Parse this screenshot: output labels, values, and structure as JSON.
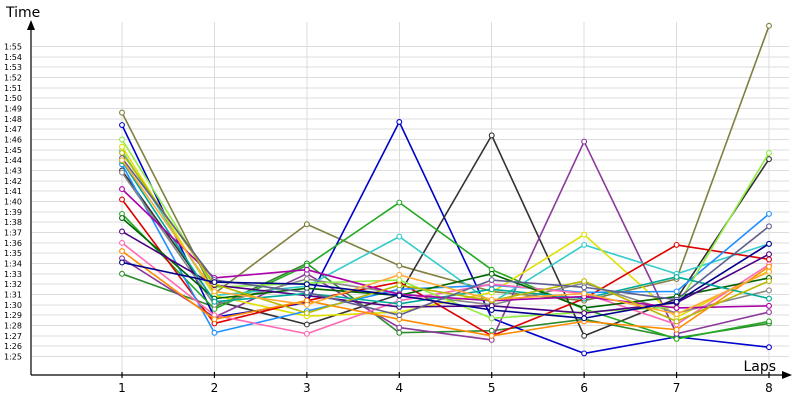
{
  "chart_data": {
    "type": "line",
    "title": "",
    "xlabel": "Laps",
    "ylabel": "Time",
    "x": [
      1,
      2,
      3,
      4,
      5,
      6,
      7,
      8
    ],
    "x_tick_labels": [
      "1",
      "2",
      "3",
      "4",
      "5",
      "6",
      "7",
      "8"
    ],
    "y_unit": "seconds (displayed m:ss)",
    "y_tick_labels": [
      "1:25",
      "1:26",
      "1:27",
      "1:28",
      "1:29",
      "1:30",
      "1:31",
      "1:32",
      "1:33",
      "1:34",
      "1:35",
      "1:36",
      "1:37",
      "1:38",
      "1:39",
      "1:40",
      "1:41",
      "1:42",
      "1:43",
      "1:44",
      "1:45",
      "1:46",
      "1:47",
      "1:48",
      "1:49",
      "1:50",
      "1:51",
      "1:52",
      "1:53",
      "1:54",
      "1:55"
    ],
    "ylim": [
      84,
      116
    ],
    "grid": true,
    "legend": "none",
    "series": [
      {
        "color": "#2e8b2e",
        "values": [
          93.0,
          89.8,
          94.0,
          87.3,
          87.5,
          88.6,
          86.8,
          88.2
        ]
      },
      {
        "color": "#808040",
        "values": [
          108.6,
          91.1,
          97.8,
          93.8,
          91.3,
          90.4,
          92.5,
          117.0
        ]
      },
      {
        "color": "#0000cc",
        "values": [
          107.4,
          88.8,
          90.2,
          107.7,
          88.7,
          85.3,
          86.9,
          85.9
        ]
      },
      {
        "color": "#333333",
        "values": [
          103.0,
          90.4,
          88.1,
          91.0,
          106.4,
          87.0,
          90.6,
          104.1
        ]
      },
      {
        "color": "#8b3a9c",
        "values": [
          94.5,
          88.8,
          93.0,
          87.8,
          86.6,
          105.8,
          87.2,
          89.3
        ]
      },
      {
        "color": "#22aa22",
        "values": [
          98.8,
          89.6,
          93.8,
          99.9,
          93.4,
          89.6,
          86.7,
          88.4
        ]
      },
      {
        "color": "#33cccc",
        "values": [
          104.9,
          90.9,
          91.8,
          96.6,
          90.2,
          95.8,
          93.0,
          95.9
        ]
      },
      {
        "color": "#e0e000",
        "values": [
          105.3,
          90.9,
          88.9,
          89.3,
          91.2,
          96.8,
          88.8,
          93.3
        ]
      },
      {
        "color": "#dd0000",
        "values": [
          100.2,
          88.2,
          90.4,
          92.2,
          87.0,
          90.6,
          95.8,
          94.4
        ]
      },
      {
        "color": "#1e90ff",
        "values": [
          103.6,
          87.3,
          89.4,
          91.5,
          91.9,
          91.2,
          91.3,
          98.8
        ]
      },
      {
        "color": "#888888",
        "values": [
          102.8,
          90.0,
          92.5,
          91.1,
          90.0,
          92.1,
          89.2,
          91.4
        ]
      },
      {
        "color": "#ff69b4",
        "values": [
          96.0,
          89.0,
          87.2,
          90.4,
          92.0,
          91.1,
          88.1,
          93.9
        ]
      },
      {
        "color": "#006400",
        "values": [
          98.4,
          90.6,
          91.6,
          90.9,
          93.0,
          89.7,
          90.8,
          92.6
        ]
      },
      {
        "color": "#90ee40",
        "values": [
          106.0,
          91.7,
          92.1,
          92.4,
          88.7,
          89.3,
          89.8,
          104.7
        ]
      },
      {
        "color": "#4b0082",
        "values": [
          97.1,
          91.9,
          90.9,
          89.8,
          89.9,
          89.2,
          90.2,
          94.9
        ]
      },
      {
        "color": "#ff8c00",
        "values": [
          95.2,
          88.6,
          90.4,
          88.6,
          87.0,
          88.4,
          87.6,
          93.7
        ]
      },
      {
        "color": "#00aa99",
        "values": [
          103.9,
          90.3,
          91.1,
          90.1,
          91.5,
          90.6,
          92.7,
          90.6
        ]
      },
      {
        "color": "#aa00aa",
        "values": [
          101.2,
          92.6,
          93.4,
          91.0,
          90.4,
          90.8,
          89.7,
          89.9
        ]
      },
      {
        "color": "#b8b800",
        "values": [
          104.7,
          92.0,
          89.2,
          91.9,
          90.4,
          92.3,
          88.4,
          92.3
        ]
      },
      {
        "color": "#5f5f8f",
        "values": [
          104.2,
          92.4,
          91.2,
          89.0,
          92.4,
          91.7,
          90.5,
          97.6
        ]
      },
      {
        "color": "#ffaa33",
        "values": [
          104.0,
          91.3,
          90.0,
          92.9,
          90.5,
          91.1,
          89.1,
          93.2
        ]
      },
      {
        "color": "#00008b",
        "values": [
          94.1,
          92.2,
          92.0,
          90.9,
          89.5,
          88.7,
          90.3,
          95.9
        ]
      }
    ]
  }
}
